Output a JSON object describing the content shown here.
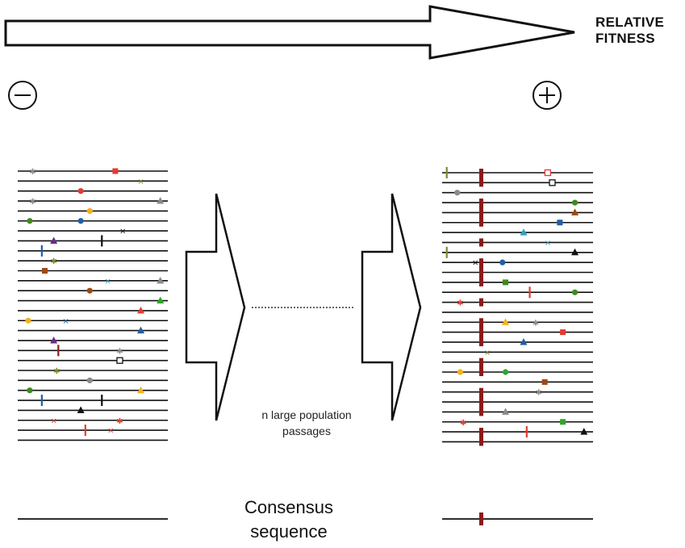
{
  "axis": {
    "label_line1": "RELATIVE",
    "label_line2": "FITNESS",
    "low_sign": "−",
    "high_sign": "+"
  },
  "passage": {
    "line1": "n large population",
    "line2": "passages"
  },
  "consensus": {
    "line1": "Consensus",
    "line2": "sequence"
  },
  "colors": {
    "red": "#e53a2f",
    "darkred": "#8b1a1a",
    "brown": "#9c4a14",
    "orange": "#f4b21a",
    "green": "#3f8a1f",
    "brightgreen": "#2fa52a",
    "olive": "#7a8a2a",
    "blue": "#1f5fa6",
    "teal": "#2fa2c4",
    "purple": "#6b2a8a",
    "gray": "#8a8a8a",
    "black": "#111111"
  },
  "populations": {
    "initial": {
      "mutations": [
        {
          "row": 0,
          "pos": 0.1,
          "shape": "star",
          "color": "gray"
        },
        {
          "row": 0,
          "pos": 0.65,
          "shape": "square",
          "color": "red"
        },
        {
          "row": 1,
          "pos": 0.82,
          "shape": "x",
          "color": "olive"
        },
        {
          "row": 2,
          "pos": 0.42,
          "shape": "circle",
          "color": "red"
        },
        {
          "row": 3,
          "pos": 0.1,
          "shape": "star",
          "color": "gray"
        },
        {
          "row": 3,
          "pos": 0.95,
          "shape": "triangle",
          "color": "gray"
        },
        {
          "row": 4,
          "pos": 0.48,
          "shape": "circle",
          "color": "orange"
        },
        {
          "row": 5,
          "pos": 0.08,
          "shape": "circle",
          "color": "green"
        },
        {
          "row": 5,
          "pos": 0.42,
          "shape": "circle",
          "color": "blue"
        },
        {
          "row": 6,
          "pos": 0.7,
          "shape": "x",
          "color": "black"
        },
        {
          "row": 7,
          "pos": 0.24,
          "shape": "triangle",
          "color": "purple"
        },
        {
          "row": 7,
          "pos": 0.56,
          "shape": "bar",
          "color": "black"
        },
        {
          "row": 8,
          "pos": 0.16,
          "shape": "bar",
          "color": "blue"
        },
        {
          "row": 9,
          "pos": 0.24,
          "shape": "star",
          "color": "olive"
        },
        {
          "row": 10,
          "pos": 0.18,
          "shape": "square",
          "color": "brown"
        },
        {
          "row": 11,
          "pos": 0.6,
          "shape": "x",
          "color": "teal"
        },
        {
          "row": 11,
          "pos": 0.95,
          "shape": "triangle",
          "color": "gray"
        },
        {
          "row": 12,
          "pos": 0.48,
          "shape": "circle",
          "color": "brown"
        },
        {
          "row": 13,
          "pos": 0.95,
          "shape": "triangle",
          "color": "brightgreen"
        },
        {
          "row": 14,
          "pos": 0.82,
          "shape": "triangle",
          "color": "red"
        },
        {
          "row": 15,
          "pos": 0.07,
          "shape": "circle",
          "color": "orange"
        },
        {
          "row": 15,
          "pos": 0.32,
          "shape": "x",
          "color": "blue"
        },
        {
          "row": 16,
          "pos": 0.82,
          "shape": "triangle",
          "color": "blue"
        },
        {
          "row": 17,
          "pos": 0.24,
          "shape": "triangle",
          "color": "purple"
        },
        {
          "row": 18,
          "pos": 0.27,
          "shape": "bar",
          "color": "darkred"
        },
        {
          "row": 18,
          "pos": 0.68,
          "shape": "star",
          "color": "gray"
        },
        {
          "row": 19,
          "pos": 0.68,
          "shape": "open-square",
          "color": "black"
        },
        {
          "row": 20,
          "pos": 0.26,
          "shape": "star",
          "color": "olive"
        },
        {
          "row": 21,
          "pos": 0.48,
          "shape": "circle",
          "color": "gray"
        },
        {
          "row": 22,
          "pos": 0.08,
          "shape": "circle",
          "color": "green"
        },
        {
          "row": 22,
          "pos": 0.82,
          "shape": "triangle",
          "color": "orange"
        },
        {
          "row": 23,
          "pos": 0.16,
          "shape": "bar",
          "color": "blue"
        },
        {
          "row": 23,
          "pos": 0.56,
          "shape": "bar",
          "color": "black"
        },
        {
          "row": 24,
          "pos": 0.42,
          "shape": "triangle",
          "color": "black"
        },
        {
          "row": 25,
          "pos": 0.24,
          "shape": "x",
          "color": "red"
        },
        {
          "row": 25,
          "pos": 0.68,
          "shape": "star",
          "color": "red"
        },
        {
          "row": 26,
          "pos": 0.45,
          "shape": "bar",
          "color": "red"
        },
        {
          "row": 26,
          "pos": 0.62,
          "shape": "x",
          "color": "red"
        }
      ]
    },
    "evolved": {
      "mutations": [
        {
          "row": 0,
          "pos": 0.03,
          "shape": "bar",
          "color": "olive"
        },
        {
          "row": 0,
          "pos": 0.7,
          "shape": "open-square",
          "color": "red"
        },
        {
          "row": 1,
          "pos": 0.73,
          "shape": "open-square",
          "color": "black"
        },
        {
          "row": 2,
          "pos": 0.1,
          "shape": "circle",
          "color": "gray"
        },
        {
          "row": 3,
          "pos": 0.88,
          "shape": "circle",
          "color": "green"
        },
        {
          "row": 4,
          "pos": 0.88,
          "shape": "triangle",
          "color": "brown"
        },
        {
          "row": 5,
          "pos": 0.78,
          "shape": "square",
          "color": "blue"
        },
        {
          "row": 6,
          "pos": 0.54,
          "shape": "triangle",
          "color": "teal"
        },
        {
          "row": 7,
          "pos": 0.7,
          "shape": "x",
          "color": "teal"
        },
        {
          "row": 8,
          "pos": 0.03,
          "shape": "bar",
          "color": "olive"
        },
        {
          "row": 8,
          "pos": 0.88,
          "shape": "triangle",
          "color": "black"
        },
        {
          "row": 9,
          "pos": 0.22,
          "shape": "x",
          "color": "black"
        },
        {
          "row": 9,
          "pos": 0.4,
          "shape": "circle",
          "color": "blue"
        },
        {
          "row": 11,
          "pos": 0.42,
          "shape": "square",
          "color": "green"
        },
        {
          "row": 12,
          "pos": 0.58,
          "shape": "bar",
          "color": "red"
        },
        {
          "row": 12,
          "pos": 0.88,
          "shape": "circle",
          "color": "green"
        },
        {
          "row": 13,
          "pos": 0.12,
          "shape": "star",
          "color": "red"
        },
        {
          "row": 15,
          "pos": 0.42,
          "shape": "triangle",
          "color": "orange"
        },
        {
          "row": 15,
          "pos": 0.62,
          "shape": "star",
          "color": "gray"
        },
        {
          "row": 16,
          "pos": 0.8,
          "shape": "square",
          "color": "red"
        },
        {
          "row": 17,
          "pos": 0.54,
          "shape": "triangle",
          "color": "blue"
        },
        {
          "row": 18,
          "pos": 0.3,
          "shape": "x",
          "color": "olive"
        },
        {
          "row": 20,
          "pos": 0.12,
          "shape": "circle",
          "color": "orange"
        },
        {
          "row": 20,
          "pos": 0.42,
          "shape": "circle",
          "color": "brightgreen"
        },
        {
          "row": 21,
          "pos": 0.68,
          "shape": "square",
          "color": "brown"
        },
        {
          "row": 22,
          "pos": 0.64,
          "shape": "star",
          "color": "gray"
        },
        {
          "row": 24,
          "pos": 0.42,
          "shape": "triangle",
          "color": "gray"
        },
        {
          "row": 25,
          "pos": 0.8,
          "shape": "square",
          "color": "brightgreen"
        },
        {
          "row": 25,
          "pos": 0.14,
          "shape": "star",
          "color": "red"
        },
        {
          "row": 26,
          "pos": 0.56,
          "shape": "bar",
          "color": "red"
        },
        {
          "row": 26,
          "pos": 0.94,
          "shape": "triangle",
          "color": "black"
        }
      ]
    }
  }
}
